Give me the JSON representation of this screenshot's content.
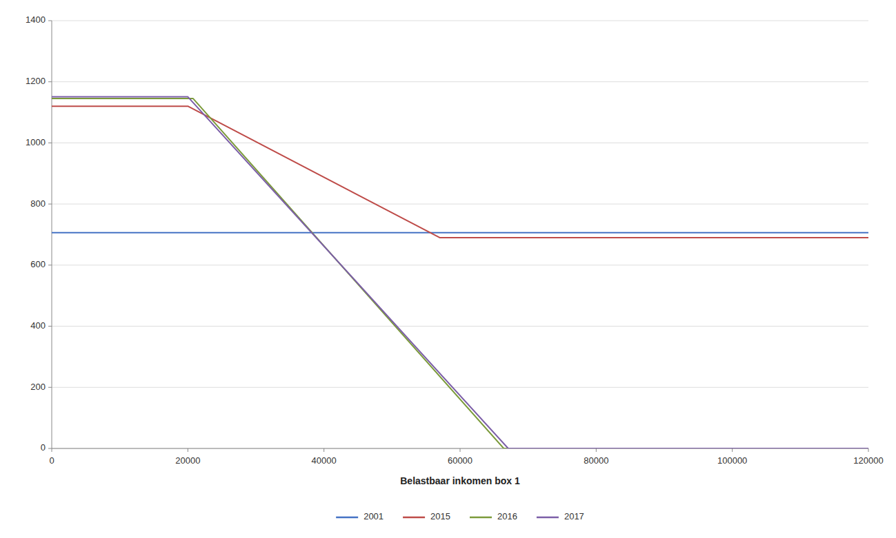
{
  "chart_data": {
    "type": "line",
    "xlabel": "Belastbaar inkomen box 1",
    "series": [
      {
        "name": "2001",
        "color": "#4472C4",
        "x": [
          0,
          120000
        ],
        "values": [
          706,
          706
        ]
      },
      {
        "name": "2015",
        "color": "#BE4B48",
        "x": [
          0,
          20000,
          57000,
          120000
        ],
        "values": [
          1120,
          1120,
          690,
          690
        ]
      },
      {
        "name": "2016",
        "color": "#7B9A3A",
        "x": [
          0,
          20778,
          66417,
          120000
        ],
        "values": [
          1145,
          1145,
          0,
          0
        ]
      },
      {
        "name": "2017",
        "color": "#7B5EA7",
        "x": [
          0,
          19982,
          67072,
          120000
        ],
        "values": [
          1151,
          1151,
          0,
          0
        ]
      }
    ],
    "xlim": [
      0,
      120000
    ],
    "ylim": [
      0,
      1400
    ],
    "xticks": [
      0,
      20000,
      40000,
      60000,
      80000,
      100000,
      120000
    ],
    "yticks": [
      0,
      200,
      400,
      600,
      800,
      1000,
      1200,
      1400
    ],
    "grid": true,
    "legend": "bottom"
  }
}
